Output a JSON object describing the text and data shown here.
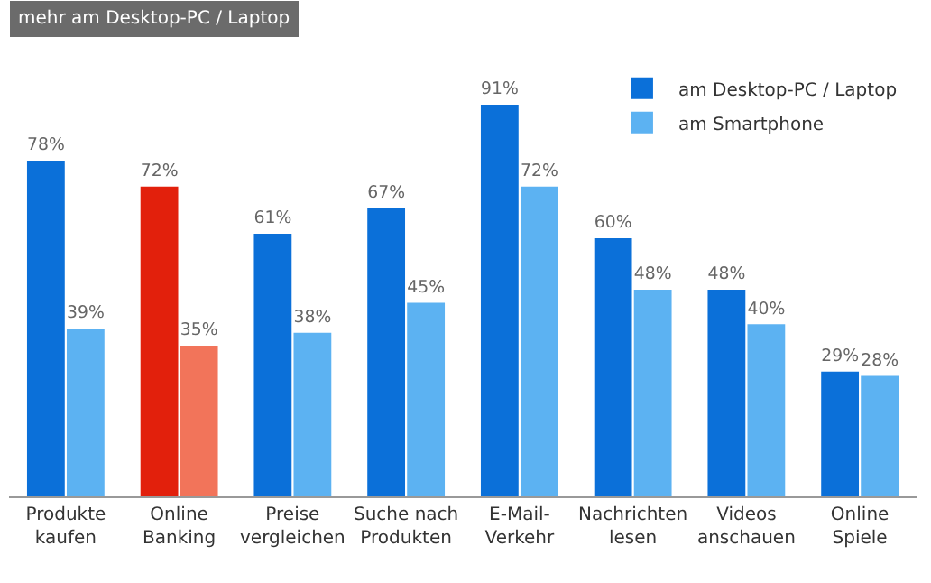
{
  "chart_data": {
    "type": "bar",
    "title": "mehr am Desktop-PC / Laptop",
    "categories": [
      "Produkte\nkaufen",
      "Online\nBanking",
      "Preise\nvergleichen",
      "Suche nach\nProdukten",
      "E-Mail-\nVerkehr",
      "Nachrichten\nlesen",
      "Videos\nanschauen",
      "Online\nSpiele"
    ],
    "series": [
      {
        "name": "am Desktop-PC / Laptop",
        "color": "#0b70d9",
        "colors": [
          "#0b70d9",
          "#e2200c",
          "#0b70d9",
          "#0b70d9",
          "#0b70d9",
          "#0b70d9",
          "#0b70d9",
          "#0b70d9"
        ],
        "values": [
          78,
          72,
          61,
          67,
          91,
          60,
          48,
          29
        ],
        "value_labels": [
          "78%",
          "72%",
          "61%",
          "67%",
          "91%",
          "60%",
          "48%",
          "29%"
        ]
      },
      {
        "name": "am Smartphone",
        "color": "#5cb2f2",
        "colors": [
          "#5cb2f2",
          "#f2745a",
          "#5cb2f2",
          "#5cb2f2",
          "#5cb2f2",
          "#5cb2f2",
          "#5cb2f2",
          "#5cb2f2"
        ],
        "values": [
          39,
          35,
          38,
          45,
          72,
          48,
          40,
          28
        ],
        "value_labels": [
          "39%",
          "35%",
          "38%",
          "45%",
          "72%",
          "48%",
          "40%",
          "28%"
        ]
      }
    ],
    "legend": "top right"
  }
}
